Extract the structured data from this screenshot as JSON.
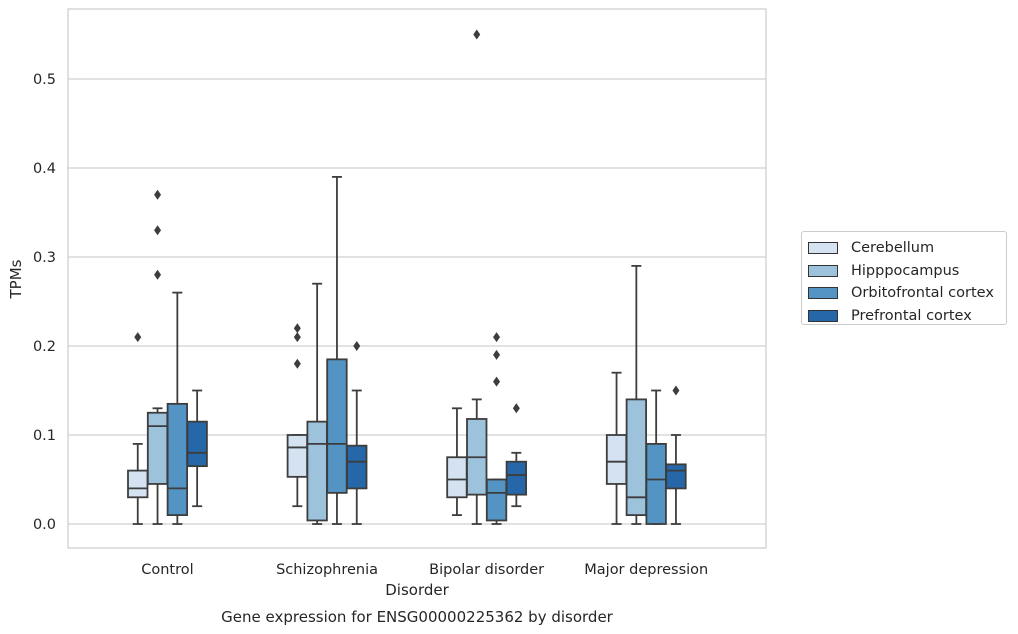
{
  "chart_data": {
    "type": "box",
    "title": "Gene expression for ENSG00000225362 by disorder",
    "xlabel": "Disorder",
    "ylabel": "TPMs",
    "ylim": [
      -0.027,
      0.578
    ],
    "yticks": [
      "0.0",
      "0.1",
      "0.2",
      "0.3",
      "0.4",
      "0.5"
    ],
    "ytick_values": [
      0,
      0.1,
      0.2,
      0.3,
      0.4,
      0.5
    ],
    "grid": true,
    "legend_position": "right",
    "categories": [
      "Control",
      "Schizophrenia",
      "Bipolar disorder",
      "Major depression"
    ],
    "series": [
      {
        "name": "Cerebellum",
        "color": "#d4e2f1",
        "boxes": [
          {
            "whisker_low": 0.0,
            "q1": 0.03,
            "median": 0.04,
            "q3": 0.06,
            "whisker_high": 0.09,
            "outliers": [
              0.21
            ]
          },
          {
            "whisker_low": 0.02,
            "q1": 0.053,
            "median": 0.086,
            "q3": 0.1,
            "whisker_high": 0.1,
            "outliers": [
              0.18,
              0.21,
              0.22
            ]
          },
          {
            "whisker_low": 0.01,
            "q1": 0.03,
            "median": 0.05,
            "q3": 0.075,
            "whisker_high": 0.13,
            "outliers": []
          },
          {
            "whisker_low": 0.0,
            "q1": 0.045,
            "median": 0.07,
            "q3": 0.1,
            "whisker_high": 0.17,
            "outliers": []
          }
        ]
      },
      {
        "name": "Hipppocampus",
        "color": "#9cc2dc",
        "boxes": [
          {
            "whisker_low": 0.0,
            "q1": 0.045,
            "median": 0.11,
            "q3": 0.125,
            "whisker_high": 0.13,
            "outliers": [
              0.28,
              0.33,
              0.37
            ]
          },
          {
            "whisker_low": 0.0,
            "q1": 0.004,
            "median": 0.09,
            "q3": 0.115,
            "whisker_high": 0.27,
            "outliers": []
          },
          {
            "whisker_low": 0.0,
            "q1": 0.033,
            "median": 0.075,
            "q3": 0.118,
            "whisker_high": 0.14,
            "outliers": [
              0.55
            ]
          },
          {
            "whisker_low": 0.0,
            "q1": 0.01,
            "median": 0.03,
            "q3": 0.14,
            "whisker_high": 0.29,
            "outliers": []
          }
        ]
      },
      {
        "name": "Orbitofrontal cortex",
        "color": "#5394c4",
        "boxes": [
          {
            "whisker_low": 0.0,
            "q1": 0.01,
            "median": 0.04,
            "q3": 0.135,
            "whisker_high": 0.26,
            "outliers": []
          },
          {
            "whisker_low": 0.0,
            "q1": 0.035,
            "median": 0.09,
            "q3": 0.185,
            "whisker_high": 0.39,
            "outliers": []
          },
          {
            "whisker_low": 0.0,
            "q1": 0.004,
            "median": 0.035,
            "q3": 0.05,
            "whisker_high": 0.05,
            "outliers": [
              0.16,
              0.19,
              0.21
            ]
          },
          {
            "whisker_low": 0.0,
            "q1": 0.0,
            "median": 0.05,
            "q3": 0.09,
            "whisker_high": 0.15,
            "outliers": []
          }
        ]
      },
      {
        "name": "Prefrontal cortex",
        "color": "#2567a8",
        "boxes": [
          {
            "whisker_low": 0.02,
            "q1": 0.065,
            "median": 0.08,
            "q3": 0.115,
            "whisker_high": 0.15,
            "outliers": []
          },
          {
            "whisker_low": 0.0,
            "q1": 0.04,
            "median": 0.07,
            "q3": 0.088,
            "whisker_high": 0.15,
            "outliers": [
              0.2
            ]
          },
          {
            "whisker_low": 0.02,
            "q1": 0.033,
            "median": 0.055,
            "q3": 0.07,
            "whisker_high": 0.08,
            "outliers": [
              0.13
            ]
          },
          {
            "whisker_low": 0.0,
            "q1": 0.04,
            "median": 0.06,
            "q3": 0.067,
            "whisker_high": 0.1,
            "outliers": [
              0.15
            ]
          }
        ]
      }
    ]
  }
}
